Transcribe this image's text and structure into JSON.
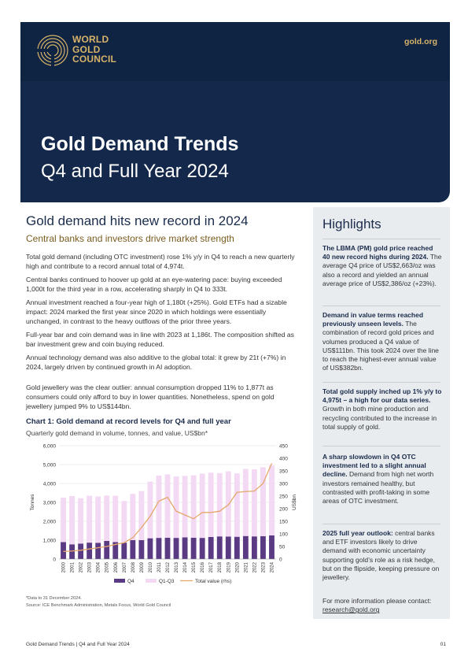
{
  "header": {
    "logo_lines": [
      "WORLD",
      "GOLD",
      "COUNCIL"
    ],
    "site": "gold.org",
    "title": "Gold Demand Trends",
    "subtitle": "Q4 and Full Year 2024"
  },
  "main": {
    "heading": "Gold demand hits new record in 2024",
    "subheading": "Central banks and investors drive market strength",
    "paragraphs": [
      "Total gold demand (including OTC investment) rose 1% y/y in Q4 to reach a new quarterly high and contribute to a record annual total of 4,974t.",
      "Central banks continued to hoover up gold at an eye-watering pace: buying exceeded 1,000t for the third year in a row, accelerating sharply in Q4 to 333t.",
      "Annual investment reached a four-year high of 1,180t (+25%). Gold ETFs had a sizable impact: 2024 marked the first year since 2020 in which holdings were essentially unchanged, in contrast to the heavy outflows of the prior three years.",
      "Full-year bar and coin demand was in line with 2023 at 1,186t. The composition shifted as bar investment grew and coin buying reduced.",
      "Annual technology demand was also additive to the global total: it grew by 21t (+7%) in 2024, largely driven by continued growth in AI adoption.",
      "Gold jewellery was the clear outlier: annual consumption dropped 11% to 1,877t as consumers could only afford to buy in lower quantities. Nonetheless, spend on gold jewellery jumped 9% to US$144bn."
    ]
  },
  "chart_data": {
    "type": "bar",
    "title": "Chart 1: Gold demand at record levels for Q4 and full year",
    "subtitle": "Quarterly gold demand in volume, tonnes, and value, US$bn*",
    "categories": [
      "2000",
      "2001",
      "2002",
      "2003",
      "2004",
      "2005",
      "2006",
      "2007",
      "2008",
      "2009",
      "2010",
      "2011",
      "2012",
      "2013",
      "2014",
      "2015",
      "2016",
      "2017",
      "2018",
      "2019",
      "2020",
      "2021",
      "2022",
      "2023",
      "2024"
    ],
    "series": [
      {
        "name": "Q4",
        "values": [
          900,
          780,
          820,
          870,
          860,
          960,
          900,
          870,
          1000,
          1000,
          1100,
          1120,
          1130,
          1120,
          1150,
          1130,
          1120,
          1170,
          1200,
          1190,
          1180,
          1220,
          1200,
          1210,
          1250
        ]
      },
      {
        "name": "Q1-Q3",
        "values": [
          2350,
          2550,
          2400,
          2480,
          2450,
          2400,
          2450,
          2200,
          2450,
          2600,
          3000,
          3300,
          3350,
          3250,
          3250,
          3300,
          3400,
          3400,
          3350,
          3450,
          3350,
          3550,
          3550,
          3650,
          3700
        ]
      },
      {
        "name": "Total value (rhs)",
        "axis": "right",
        "values": [
          30,
          32,
          35,
          40,
          45,
          50,
          58,
          65,
          85,
          125,
          170,
          230,
          245,
          190,
          175,
          160,
          185,
          185,
          190,
          215,
          265,
          268,
          270,
          300,
          380
        ]
      }
    ],
    "ylabel": "Tonnes",
    "ylabel_right": "US$bn",
    "ylim": [
      0,
      6000
    ],
    "yticks": [
      "6,000",
      "5,000",
      "4,000",
      "3,000",
      "2,000",
      "1,000",
      "0"
    ],
    "ylim_right": [
      0,
      450
    ],
    "yticks_right": [
      "450",
      "400",
      "350",
      "300",
      "250",
      "200",
      "150",
      "100",
      "50",
      "0"
    ],
    "legend_position": "bottom",
    "colors": {
      "q4": "#5b3a84",
      "q1q3": "#f3d9f3",
      "value": "#e5a86b"
    },
    "note": "*Data to 31 December 2024.",
    "source": "Source: ICE Benchmark Administration, Metals Focus, World Gold Council"
  },
  "sidebar": {
    "title": "Highlights",
    "items": [
      {
        "bold": "The LBMA (PM) gold price reached 40 new record highs during 2024.",
        "text": " The average Q4 price of US$2,663/oz was also a record and yielded an annual average price of US$2,386/oz (+23%)."
      },
      {
        "bold": "Demand in value terms reached previously unseen levels.",
        "text": " The combination of record gold prices and volumes produced a Q4 value of US$111bn. This took 2024 over the line to reach the highest-ever annual value of US$382bn."
      },
      {
        "bold": "Total gold supply inched up 1% y/y to 4,975t – a high for our data series.",
        "text": " Growth in both mine production and recycling contributed to the increase in total supply of gold."
      },
      {
        "bold": "A sharp slowdown in Q4 OTC investment led to a slight annual decline.",
        "text": " Demand from high net worth investors remained healthy, but contrasted with profit-taking in some areas of OTC investment."
      },
      {
        "bold": "2025 full year outlook:",
        "text": " central banks and ETF investors likely to drive demand with economic uncertainty supporting gold’s role as a risk hedge, but on the flipside, keeping pressure on jewellery."
      }
    ],
    "contact_text": "For more information please contact: ",
    "contact_link": "research@gold.org"
  },
  "footer": {
    "left": "Gold Demand Trends | Q4 and Full Year 2024",
    "page": "01"
  }
}
